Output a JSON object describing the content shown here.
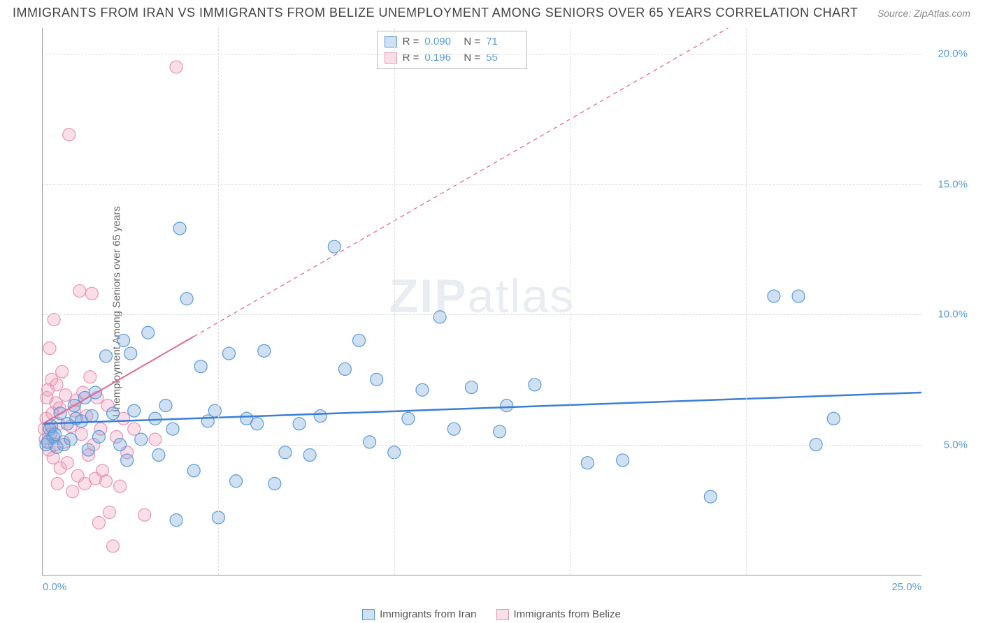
{
  "header": {
    "title": "IMMIGRANTS FROM IRAN VS IMMIGRANTS FROM BELIZE UNEMPLOYMENT AMONG SENIORS OVER 65 YEARS CORRELATION CHART",
    "source_prefix": "Source: ",
    "source": "ZipAtlas.com"
  },
  "watermark": {
    "part1": "ZIP",
    "part2": "atlas"
  },
  "axes": {
    "ylabel": "Unemployment Among Seniors over 65 years",
    "xlim": [
      0,
      25
    ],
    "ylim": [
      0,
      21
    ],
    "xticks": [
      {
        "val": 0,
        "label": "0.0%"
      },
      {
        "val": 25,
        "label": "25.0%"
      }
    ],
    "xgrid": [
      5,
      10,
      15,
      20
    ],
    "yticks": [
      {
        "val": 5,
        "label": "5.0%"
      },
      {
        "val": 10,
        "label": "10.0%"
      },
      {
        "val": 15,
        "label": "15.0%"
      },
      {
        "val": 20,
        "label": "20.0%"
      }
    ],
    "grid_color": "#dddddd",
    "axis_color": "#999999",
    "tick_color": "#5a9bd5"
  },
  "series": [
    {
      "name": "Immigrants from Iran",
      "color_fill": "rgba(120,165,220,0.35)",
      "color_stroke": "#5a9bd5",
      "line_color": "#3a7fd5",
      "line_width": 2.5,
      "marker_r": 9,
      "R": "0.090",
      "N": "71",
      "trend": {
        "x1": 0,
        "y1": 5.8,
        "x2": 25,
        "y2": 7.0,
        "dash_after_x": null
      },
      "points": [
        [
          0.1,
          5.0
        ],
        [
          0.2,
          5.6
        ],
        [
          0.15,
          5.1
        ],
        [
          0.3,
          5.3
        ],
        [
          0.25,
          5.7
        ],
        [
          0.4,
          4.9
        ],
        [
          0.35,
          5.4
        ],
        [
          0.5,
          6.2
        ],
        [
          0.6,
          5.0
        ],
        [
          0.7,
          5.8
        ],
        [
          0.8,
          5.2
        ],
        [
          0.9,
          6.5
        ],
        [
          0.95,
          6.0
        ],
        [
          1.1,
          5.9
        ],
        [
          1.2,
          6.8
        ],
        [
          1.3,
          4.8
        ],
        [
          1.4,
          6.1
        ],
        [
          1.5,
          7.0
        ],
        [
          1.6,
          5.3
        ],
        [
          1.8,
          8.4
        ],
        [
          2.0,
          6.2
        ],
        [
          2.2,
          5.0
        ],
        [
          2.3,
          9.0
        ],
        [
          2.4,
          4.4
        ],
        [
          2.5,
          8.5
        ],
        [
          2.6,
          6.3
        ],
        [
          2.8,
          5.2
        ],
        [
          3.0,
          9.3
        ],
        [
          3.2,
          6.0
        ],
        [
          3.3,
          4.6
        ],
        [
          3.5,
          6.5
        ],
        [
          3.7,
          5.6
        ],
        [
          3.8,
          2.1
        ],
        [
          3.9,
          13.3
        ],
        [
          4.1,
          10.6
        ],
        [
          4.3,
          4.0
        ],
        [
          4.5,
          8.0
        ],
        [
          4.7,
          5.9
        ],
        [
          4.9,
          6.3
        ],
        [
          5.0,
          2.2
        ],
        [
          5.3,
          8.5
        ],
        [
          5.5,
          3.6
        ],
        [
          5.8,
          6.0
        ],
        [
          6.1,
          5.8
        ],
        [
          6.3,
          8.6
        ],
        [
          6.6,
          3.5
        ],
        [
          6.9,
          4.7
        ],
        [
          7.3,
          5.8
        ],
        [
          7.6,
          4.6
        ],
        [
          7.9,
          6.1
        ],
        [
          8.3,
          12.6
        ],
        [
          8.6,
          7.9
        ],
        [
          9.0,
          9.0
        ],
        [
          9.3,
          5.1
        ],
        [
          9.5,
          7.5
        ],
        [
          10.0,
          4.7
        ],
        [
          10.4,
          6.0
        ],
        [
          10.8,
          7.1
        ],
        [
          11.3,
          9.9
        ],
        [
          11.7,
          5.6
        ],
        [
          12.2,
          7.2
        ],
        [
          13.0,
          5.5
        ],
        [
          13.2,
          6.5
        ],
        [
          14.0,
          7.3
        ],
        [
          15.5,
          4.3
        ],
        [
          16.5,
          4.4
        ],
        [
          19.0,
          3.0
        ],
        [
          20.8,
          10.7
        ],
        [
          21.5,
          10.7
        ],
        [
          22.0,
          5.0
        ],
        [
          22.5,
          6.0
        ]
      ]
    },
    {
      "name": "Immigrants from Belize",
      "color_fill": "rgba(240,160,190,0.35)",
      "color_stroke": "#e895b5",
      "line_color": "#e26a95",
      "line_width": 2,
      "marker_r": 9,
      "R": "0.196",
      "N": "55",
      "trend": {
        "x1": 0,
        "y1": 5.8,
        "x2": 19.5,
        "y2": 21.0,
        "dash_after_x": 4.3
      },
      "points": [
        [
          0.05,
          5.6
        ],
        [
          0.1,
          6.0
        ],
        [
          0.08,
          5.2
        ],
        [
          0.12,
          6.8
        ],
        [
          0.15,
          7.1
        ],
        [
          0.18,
          4.8
        ],
        [
          0.2,
          8.7
        ],
        [
          0.22,
          5.4
        ],
        [
          0.25,
          7.5
        ],
        [
          0.28,
          6.2
        ],
        [
          0.3,
          4.5
        ],
        [
          0.32,
          9.8
        ],
        [
          0.35,
          5.0
        ],
        [
          0.38,
          6.6
        ],
        [
          0.4,
          7.3
        ],
        [
          0.42,
          3.5
        ],
        [
          0.45,
          5.8
        ],
        [
          0.48,
          6.4
        ],
        [
          0.5,
          4.1
        ],
        [
          0.55,
          7.8
        ],
        [
          0.6,
          5.1
        ],
        [
          0.65,
          6.9
        ],
        [
          0.7,
          4.3
        ],
        [
          0.75,
          16.9
        ],
        [
          0.8,
          5.7
        ],
        [
          0.85,
          3.2
        ],
        [
          0.9,
          6.3
        ],
        [
          0.95,
          6.7
        ],
        [
          1.0,
          3.8
        ],
        [
          1.05,
          10.9
        ],
        [
          1.1,
          5.4
        ],
        [
          1.15,
          7.0
        ],
        [
          1.2,
          3.5
        ],
        [
          1.25,
          6.1
        ],
        [
          1.3,
          4.6
        ],
        [
          1.35,
          7.6
        ],
        [
          1.4,
          10.8
        ],
        [
          1.45,
          5.0
        ],
        [
          1.5,
          3.7
        ],
        [
          1.55,
          6.8
        ],
        [
          1.6,
          2.0
        ],
        [
          1.65,
          5.6
        ],
        [
          1.7,
          4.0
        ],
        [
          1.8,
          3.6
        ],
        [
          1.85,
          6.5
        ],
        [
          1.9,
          2.4
        ],
        [
          2.0,
          1.1
        ],
        [
          2.1,
          5.3
        ],
        [
          2.2,
          3.4
        ],
        [
          2.3,
          6.0
        ],
        [
          2.4,
          4.7
        ],
        [
          2.6,
          5.6
        ],
        [
          2.9,
          2.3
        ],
        [
          3.2,
          5.2
        ],
        [
          3.8,
          19.5
        ]
      ]
    }
  ],
  "legend_top": {
    "R_label": "R =",
    "N_label": "N ="
  },
  "legend_bottom": {}
}
